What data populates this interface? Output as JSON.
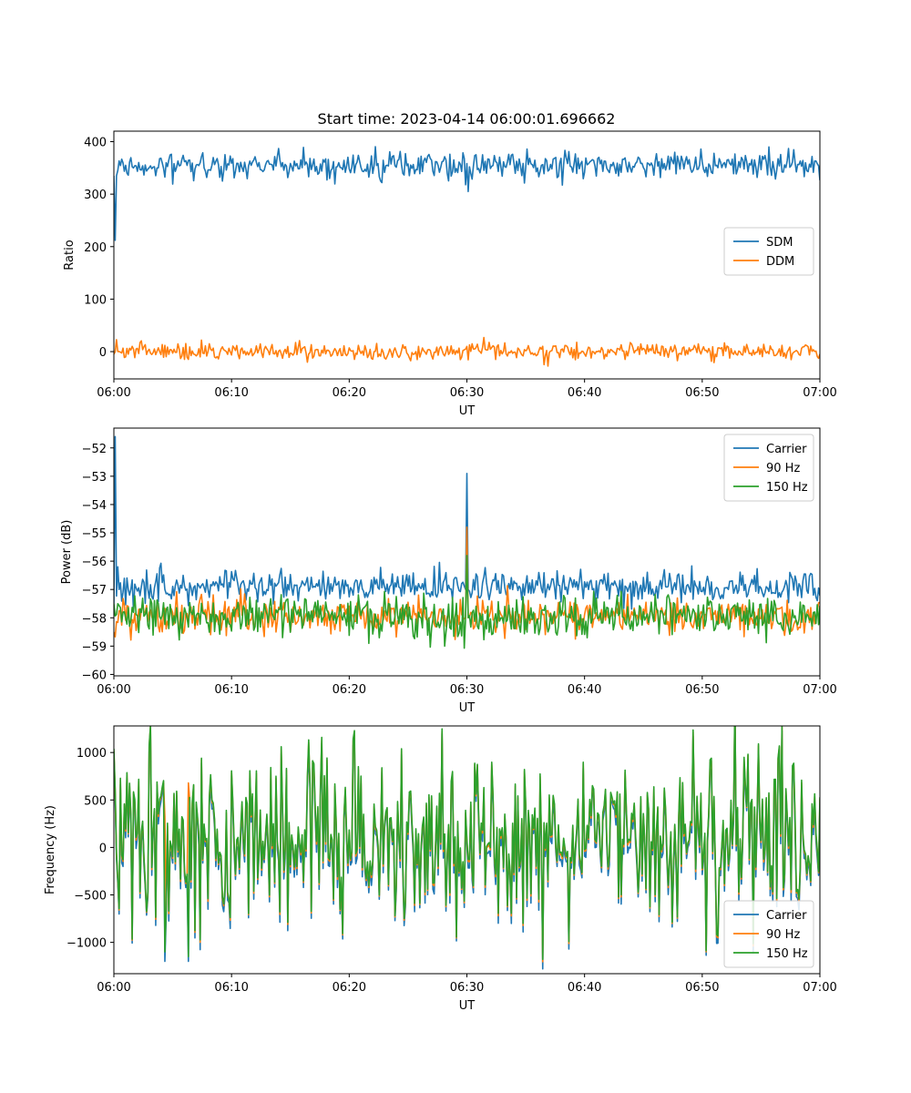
{
  "figure_title": "Start time: 2023-04-14 06:00:01.696662",
  "colors": {
    "c0": "#1f77b4",
    "c1": "#ff7f0e",
    "c2": "#2ca02c"
  },
  "chart_data": [
    {
      "type": "line",
      "xlabel": "UT",
      "ylabel": "Ratio",
      "xlim": [
        0,
        60
      ],
      "ylim": [
        -52,
        420
      ],
      "xticks": [
        0,
        10,
        20,
        30,
        40,
        50,
        60
      ],
      "xtick_labels": [
        "06:00",
        "06:10",
        "06:20",
        "06:30",
        "06:40",
        "06:50",
        "07:00"
      ],
      "yticks": [
        0,
        100,
        200,
        300,
        400
      ],
      "ytick_labels": [
        "0",
        "100",
        "200",
        "300",
        "400"
      ],
      "legend_position": "center-right",
      "series": [
        {
          "name": "SDM",
          "color": "#1f77b4",
          "baseline": 355,
          "noise": 13,
          "seed": 11,
          "overrides": [
            [
              0,
              335
            ],
            [
              0.1,
              212
            ],
            [
              0.3,
              345
            ],
            [
              29.9,
              318
            ],
            [
              30.1,
              305
            ]
          ]
        },
        {
          "name": "DDM",
          "color": "#ff7f0e",
          "baseline": 0,
          "noise": 8,
          "seed": 23,
          "overrides": [
            [
              0,
              -5
            ]
          ]
        }
      ]
    },
    {
      "type": "line",
      "xlabel": "UT",
      "ylabel": "Power (dB)",
      "xlim": [
        0,
        60
      ],
      "ylim": [
        -60.05,
        -51.3
      ],
      "xticks": [
        0,
        10,
        20,
        30,
        40,
        50,
        60
      ],
      "xtick_labels": [
        "06:00",
        "06:10",
        "06:20",
        "06:30",
        "06:40",
        "06:50",
        "07:00"
      ],
      "yticks": [
        -60,
        -59,
        -58,
        -57,
        -56,
        -55,
        -54,
        -53,
        -52
      ],
      "ytick_labels": [
        "−60",
        "−59",
        "−58",
        "−57",
        "−56",
        "−55",
        "−54",
        "−53",
        "−52"
      ],
      "legend_position": "top-right",
      "series": [
        {
          "name": "Carrier",
          "color": "#1f77b4",
          "baseline": -56.9,
          "noise": 0.28,
          "seed": 31,
          "overrides": [
            [
              0,
              -57.5
            ],
            [
              0.1,
              -51.6
            ],
            [
              0.3,
              -56.2
            ],
            [
              0.5,
              -57
            ],
            [
              29.9,
              -57
            ],
            [
              30.0,
              -52.9
            ],
            [
              30.1,
              -57
            ]
          ]
        },
        {
          "name": "90 Hz",
          "color": "#ff7f0e",
          "baseline": -57.95,
          "noise": 0.32,
          "seed": 47,
          "overrides": [
            [
              0,
              -58.5
            ],
            [
              29.9,
              -58
            ],
            [
              30.0,
              -54.8
            ],
            [
              30.1,
              -58
            ]
          ]
        },
        {
          "name": "150 Hz",
          "color": "#2ca02c",
          "baseline": -57.95,
          "noise": 0.38,
          "seed": 59,
          "overrides": [
            [
              0,
              -57.5
            ],
            [
              29.9,
              -58
            ],
            [
              30.0,
              -55.8
            ],
            [
              30.1,
              -58
            ]
          ]
        }
      ]
    },
    {
      "type": "line",
      "xlabel": "UT",
      "ylabel": "Frequency (Hz)",
      "xlim": [
        0,
        60
      ],
      "ylim": [
        -1330,
        1280
      ],
      "xticks": [
        0,
        10,
        20,
        30,
        40,
        50,
        60
      ],
      "xtick_labels": [
        "06:00",
        "06:10",
        "06:20",
        "06:30",
        "06:40",
        "06:50",
        "07:00"
      ],
      "yticks": [
        -1000,
        -500,
        0,
        500,
        1000
      ],
      "ytick_labels": [
        "−1000",
        "−500",
        "0",
        "500",
        "1000"
      ],
      "legend_position": "lower-right",
      "series": [
        {
          "name": "Carrier",
          "color": "#1f77b4",
          "baseline": 0,
          "noise": 430,
          "seed": 71,
          "overrides": [
            [
              0,
              1000
            ],
            [
              4.3,
              -1200
            ],
            [
              6.3,
              -1200
            ],
            [
              17.7,
              1100
            ],
            [
              20.4,
              1150
            ],
            [
              27.9,
              1200
            ]
          ]
        },
        {
          "name": "90 Hz",
          "color": "#ff7f0e",
          "baseline": 0,
          "noise": 430,
          "seed": 71,
          "offset": 60,
          "overrides": [
            [
              0,
              1020
            ],
            [
              17.7,
              1130
            ],
            [
              20.4,
              1180
            ],
            [
              27.9,
              1220
            ]
          ]
        },
        {
          "name": "150 Hz",
          "color": "#2ca02c",
          "baseline": 0,
          "noise": 430,
          "seed": 71,
          "offset": 80,
          "overrides": [
            [
              0,
              1040
            ],
            [
              4.3,
              -1100
            ],
            [
              6.3,
              -1150
            ],
            [
              17.7,
              1160
            ],
            [
              20.4,
              1230
            ],
            [
              27.9,
              1250
            ]
          ]
        }
      ]
    }
  ]
}
